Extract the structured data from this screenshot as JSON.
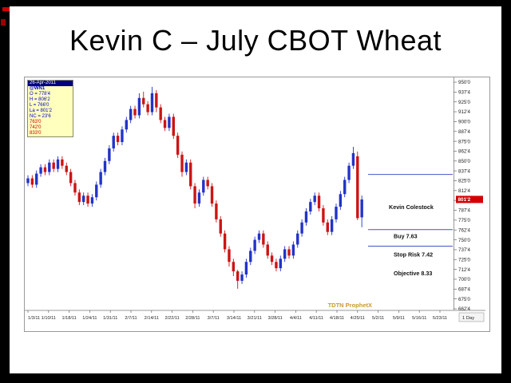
{
  "slide": {
    "title": "Kevin C – July CBOT Wheat"
  },
  "chart": {
    "watermark": "TDTN ProphetX",
    "timeframe": "1 Day",
    "last_price_label": "801'2",
    "info_box": {
      "date": "26-Apr-2011",
      "symbol": "@WN1",
      "rows": [
        "O = 778'4",
        "H = 806'2",
        "L = 766'0",
        "La = 801'2",
        "NC = 23'6"
      ],
      "line_values": [
        "763'0",
        "742'0",
        "833'0"
      ]
    }
  },
  "chart_data": {
    "type": "candlestick",
    "title": "July CBOT Wheat (@WN1), daily",
    "ylim": [
      662.5,
      950
    ],
    "grid": false,
    "up_color": "#2233c8",
    "down_color": "#cc1414",
    "line_color": "#4455cc",
    "last_price": 801.25,
    "y_ticks": [
      "950'0",
      "937'4",
      "925'0",
      "912'4",
      "900'0",
      "887'4",
      "875'0",
      "862'4",
      "850'0",
      "837'4",
      "825'0",
      "812'4",
      "800'0",
      "787'4",
      "775'0",
      "762'4",
      "750'0",
      "737'4",
      "725'0",
      "712'4",
      "700'0",
      "687'4",
      "675'0",
      "662'4"
    ],
    "x_ticks": [
      "1/3/11",
      "1/10/11",
      "1/18/11",
      "1/24/11",
      "1/31/11",
      "2/7/11",
      "2/14/11",
      "2/22/11",
      "2/28/11",
      "3/7/11",
      "3/14/11",
      "3/21/11",
      "3/28/11",
      "4/4/11",
      "4/11/11",
      "4/18/11",
      "4/25/11",
      "5/2/11",
      "5/9/11",
      "5/16/11",
      "5/23/11"
    ],
    "last_bar_tick_index": 16,
    "dates": [
      "1/3",
      "1/4",
      "1/5",
      "1/6",
      "1/7",
      "1/10",
      "1/11",
      "1/12",
      "1/13",
      "1/14",
      "1/18",
      "1/19",
      "1/20",
      "1/21",
      "1/24",
      "1/25",
      "1/26",
      "1/27",
      "1/28",
      "1/31",
      "2/1",
      "2/2",
      "2/3",
      "2/4",
      "2/7",
      "2/8",
      "2/9",
      "2/10",
      "2/11",
      "2/14",
      "2/15",
      "2/16",
      "2/17",
      "2/18",
      "2/22",
      "2/23",
      "2/24",
      "2/25",
      "2/28",
      "3/1",
      "3/2",
      "3/3",
      "3/4",
      "3/7",
      "3/8",
      "3/9",
      "3/10",
      "3/11",
      "3/14",
      "3/15",
      "3/16",
      "3/17",
      "3/18",
      "3/21",
      "3/22",
      "3/23",
      "3/24",
      "3/25",
      "3/28",
      "3/29",
      "3/30",
      "3/31",
      "4/1",
      "4/4",
      "4/5",
      "4/6",
      "4/7",
      "4/8",
      "4/11",
      "4/12",
      "4/13",
      "4/14",
      "4/15",
      "4/18",
      "4/19",
      "4/20",
      "4/21",
      "4/25",
      "4/26"
    ],
    "open": [
      822,
      828,
      820,
      834,
      842,
      836,
      848,
      840,
      852,
      844,
      836,
      822,
      810,
      798,
      806,
      796,
      804,
      820,
      836,
      850,
      866,
      882,
      874,
      890,
      902,
      916,
      908,
      930,
      922,
      912,
      936,
      918,
      902,
      892,
      906,
      882,
      858,
      836,
      848,
      818,
      796,
      810,
      826,
      818,
      796,
      776,
      758,
      738,
      722,
      710,
      698,
      706,
      722,
      736,
      750,
      758,
      744,
      730,
      722,
      714,
      726,
      738,
      730,
      744,
      758,
      772,
      786,
      798,
      806,
      790,
      772,
      760,
      776,
      792,
      808,
      826,
      844,
      856,
      778.5
    ],
    "high": [
      832,
      832,
      838,
      846,
      846,
      852,
      852,
      856,
      856,
      848,
      840,
      826,
      814,
      810,
      810,
      808,
      824,
      840,
      854,
      870,
      886,
      886,
      894,
      906,
      920,
      920,
      936,
      938,
      926,
      944,
      940,
      922,
      906,
      910,
      910,
      886,
      862,
      852,
      852,
      822,
      814,
      830,
      830,
      822,
      800,
      780,
      762,
      742,
      726,
      712,
      710,
      726,
      740,
      754,
      762,
      762,
      748,
      734,
      726,
      730,
      742,
      742,
      748,
      762,
      776,
      790,
      802,
      810,
      810,
      794,
      776,
      780,
      796,
      812,
      830,
      848,
      868,
      862,
      806.25
    ],
    "low": [
      818,
      816,
      816,
      830,
      832,
      832,
      836,
      836,
      840,
      832,
      818,
      806,
      794,
      794,
      792,
      792,
      800,
      816,
      832,
      846,
      862,
      870,
      870,
      886,
      898,
      904,
      904,
      918,
      908,
      908,
      912,
      898,
      888,
      888,
      878,
      854,
      830,
      832,
      814,
      790,
      792,
      806,
      814,
      792,
      772,
      754,
      734,
      716,
      704,
      688,
      694,
      702,
      718,
      732,
      746,
      740,
      726,
      718,
      710,
      710,
      722,
      726,
      726,
      740,
      754,
      768,
      782,
      794,
      786,
      768,
      756,
      756,
      772,
      788,
      804,
      822,
      840,
      775,
      766
    ],
    "close": [
      828,
      820,
      834,
      842,
      836,
      848,
      840,
      852,
      844,
      836,
      822,
      810,
      798,
      806,
      796,
      804,
      820,
      836,
      850,
      866,
      882,
      874,
      890,
      902,
      916,
      908,
      930,
      922,
      912,
      936,
      918,
      902,
      892,
      906,
      882,
      858,
      836,
      848,
      818,
      796,
      810,
      826,
      818,
      796,
      776,
      758,
      738,
      722,
      710,
      698,
      706,
      722,
      736,
      750,
      758,
      744,
      730,
      722,
      714,
      726,
      738,
      730,
      744,
      758,
      772,
      786,
      798,
      806,
      790,
      772,
      760,
      776,
      792,
      808,
      826,
      844,
      860,
      777.5,
      801.25
    ],
    "hlines": [
      {
        "name": "objective-line",
        "price": 833
      },
      {
        "name": "buy-line",
        "price": 763
      },
      {
        "name": "stop-risk-line",
        "price": 742
      }
    ],
    "annotations": [
      {
        "text": "Kevin Colestock",
        "price": 789,
        "x": 456
      },
      {
        "text": "Buy 7.63",
        "price": 752,
        "x": 462
      },
      {
        "text": "Stop Risk 7.42",
        "price": 729,
        "x": 462
      },
      {
        "text": "Objective 8.33",
        "price": 705,
        "x": 462
      }
    ]
  }
}
